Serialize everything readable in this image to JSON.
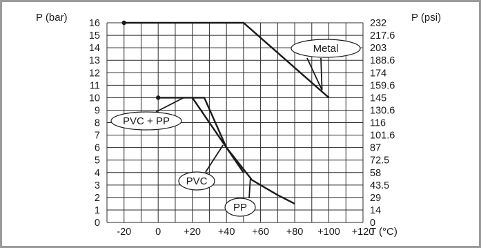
{
  "chart_data": {
    "type": "line",
    "x_unit_label": "T (°C)",
    "y_left_label": "P (bar)",
    "y_right_label": "P (psi)",
    "xlim": [
      -30,
      120
    ],
    "ylim": [
      0,
      16
    ],
    "x_tick_labels": [
      "-20",
      "0",
      "+20",
      "+40",
      "+60",
      "+80",
      "+100",
      "+120"
    ],
    "x_tick_values": [
      -20,
      0,
      20,
      40,
      60,
      80,
      100,
      120
    ],
    "y_left_ticks": [
      0,
      1,
      2,
      3,
      4,
      5,
      6,
      7,
      8,
      9,
      10,
      11,
      12,
      13,
      14,
      15,
      16
    ],
    "y_right_tick_labels": [
      "0",
      "14",
      "29",
      "43.5",
      "58",
      "72.5",
      "87",
      "101.6",
      "116",
      "130.6",
      "145",
      "159.6",
      "174",
      "188.6",
      "203",
      "217.6",
      "232"
    ],
    "grid": true,
    "series": [
      {
        "name": "Metal",
        "points": [
          [
            -20,
            16
          ],
          [
            50,
            16
          ],
          [
            100,
            10
          ]
        ],
        "start_marker": true
      },
      {
        "name": "PVC + PP",
        "points": [
          [
            0,
            10
          ],
          [
            20,
            10
          ]
        ],
        "start_marker": true
      },
      {
        "name": "PVC",
        "points": [
          [
            20,
            10
          ],
          [
            50,
            4
          ]
        ],
        "start_marker": false
      },
      {
        "name": "PP",
        "points": [
          [
            20,
            10
          ],
          [
            27,
            10
          ],
          [
            40,
            6
          ],
          [
            55,
            3.4
          ],
          [
            70,
            2.2
          ],
          [
            80,
            1.5
          ]
        ],
        "start_marker": false
      }
    ],
    "callouts": [
      {
        "series": "Metal",
        "text": "Metal",
        "target": [
          96,
          10.6
        ]
      },
      {
        "series": "PVC + PP",
        "text": "PVC + PP",
        "target": [
          15,
          10
        ]
      },
      {
        "series": "PVC",
        "text": "PVC",
        "target": [
          38,
          6.2
        ]
      },
      {
        "series": "PP",
        "text": "PP",
        "target": [
          54,
          3.5
        ]
      }
    ]
  }
}
